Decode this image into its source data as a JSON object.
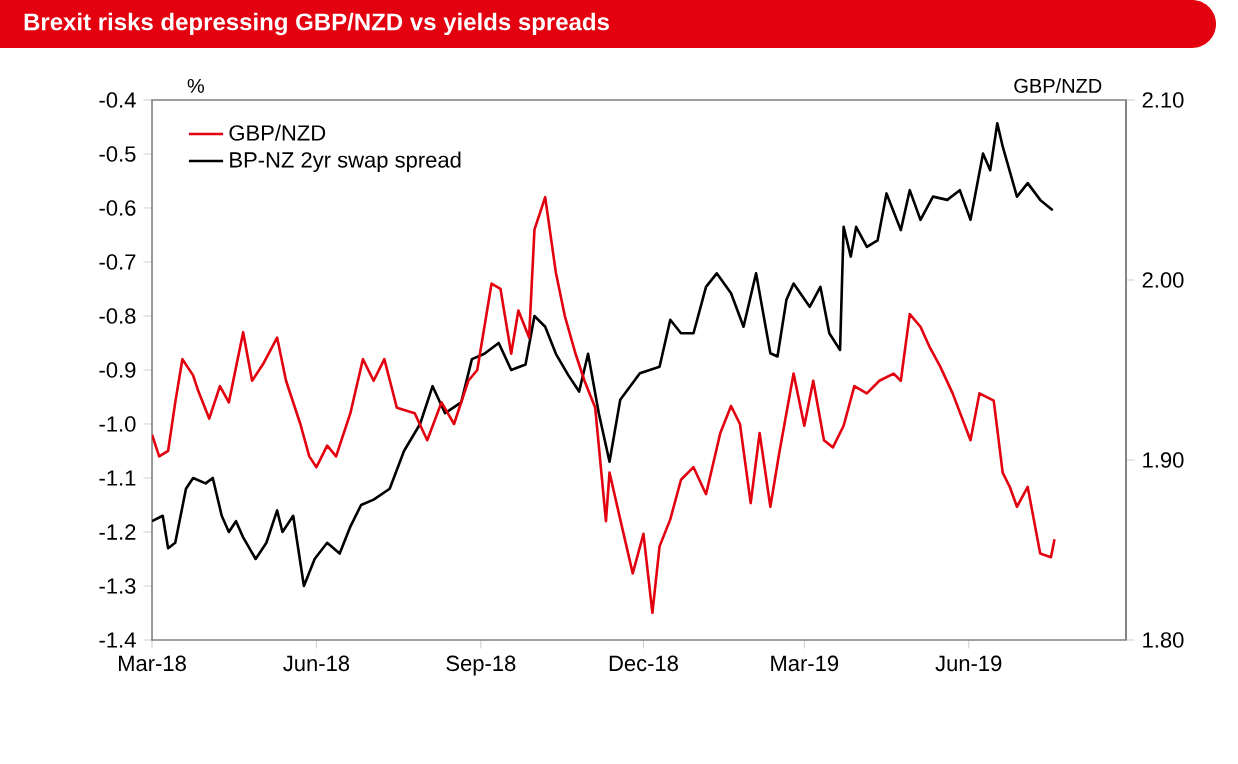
{
  "chart_data": {
    "type": "line",
    "title": "Brexit risks depressing GBP/NZD vs yields spreads",
    "ylabel": "%",
    "y2label": "GBP/NZD",
    "legend": "top left",
    "marker": "none",
    "line_style": "solid",
    "xlim": [
      "2018-03-01",
      "2019-08-28"
    ],
    "xticks": [
      {
        "value": "2018-03-01",
        "label": "Mar-18"
      },
      {
        "value": "2018-06-01",
        "label": "Jun-18"
      },
      {
        "value": "2018-09-01",
        "label": "Sep-18"
      },
      {
        "value": "2018-12-01",
        "label": "Dec-18"
      },
      {
        "value": "2019-03-01",
        "label": "Mar-19"
      },
      {
        "value": "2019-06-01",
        "label": "Jun-19"
      }
    ],
    "ylim": [
      -1.4,
      -0.4
    ],
    "yticks": [
      {
        "value": -1.4,
        "label": "-1.4"
      },
      {
        "value": -1.3,
        "label": "-1.3"
      },
      {
        "value": -1.2,
        "label": "-1.2"
      },
      {
        "value": -1.1,
        "label": "-1.1"
      },
      {
        "value": -1.0,
        "label": "-1.0"
      },
      {
        "value": -0.9,
        "label": "-0.9"
      },
      {
        "value": -0.8,
        "label": "-0.8"
      },
      {
        "value": -0.7,
        "label": "-0.7"
      },
      {
        "value": -0.6,
        "label": "-0.6"
      },
      {
        "value": -0.5,
        "label": "-0.5"
      },
      {
        "value": -0.4,
        "label": "-0.4"
      }
    ],
    "y2lim": [
      1.8,
      2.1
    ],
    "y2ticks": [
      {
        "value": 1.8,
        "label": "1.80"
      },
      {
        "value": 1.9,
        "label": "1.90"
      },
      {
        "value": 2.0,
        "label": "2.00"
      },
      {
        "value": 2.1,
        "label": "2.10"
      }
    ],
    "series": [
      {
        "name": "GBP/NZD",
        "color": "#e3000f",
        "axis": "y2",
        "x": [
          "2018-03-01",
          "2018-03-05",
          "2018-03-10",
          "2018-03-14",
          "2018-03-18",
          "2018-03-24",
          "2018-03-27",
          "2018-04-02",
          "2018-04-08",
          "2018-04-13",
          "2018-04-21",
          "2018-04-26",
          "2018-05-02",
          "2018-05-10",
          "2018-05-15",
          "2018-05-23",
          "2018-05-28",
          "2018-06-01",
          "2018-06-07",
          "2018-06-12",
          "2018-06-20",
          "2018-06-27",
          "2018-07-03",
          "2018-07-09",
          "2018-07-16",
          "2018-07-26",
          "2018-08-02",
          "2018-08-10",
          "2018-08-17",
          "2018-08-25",
          "2018-08-30",
          "2018-09-07",
          "2018-09-12",
          "2018-09-18",
          "2018-09-22",
          "2018-09-28",
          "2018-10-01",
          "2018-10-07",
          "2018-10-13",
          "2018-10-18",
          "2018-10-24",
          "2018-10-29",
          "2018-11-04",
          "2018-11-10",
          "2018-11-12",
          "2018-11-18",
          "2018-11-25",
          "2018-12-01",
          "2018-12-06",
          "2018-12-10",
          "2018-12-16",
          "2018-12-22",
          "2018-12-29",
          "2019-01-05",
          "2019-01-13",
          "2019-01-19",
          "2019-01-24",
          "2019-01-30",
          "2019-02-04",
          "2019-02-10",
          "2019-02-15",
          "2019-02-23",
          "2019-03-01",
          "2019-03-06",
          "2019-03-12",
          "2019-03-17",
          "2019-03-23",
          "2019-03-29",
          "2019-04-05",
          "2019-04-12",
          "2019-04-20",
          "2019-04-24",
          "2019-04-29",
          "2019-05-05",
          "2019-05-10",
          "2019-05-16",
          "2019-05-23",
          "2019-06-02",
          "2019-06-07",
          "2019-06-15",
          "2019-06-20",
          "2019-06-24",
          "2019-06-28",
          "2019-07-04",
          "2019-07-11",
          "2019-07-17",
          "2019-07-19"
        ],
        "values": [
          1.914,
          1.902,
          1.905,
          1.932,
          1.956,
          1.947,
          1.938,
          1.923,
          1.941,
          1.932,
          1.971,
          1.944,
          1.953,
          1.968,
          1.944,
          1.92,
          1.902,
          1.896,
          1.908,
          1.902,
          1.926,
          1.956,
          1.944,
          1.956,
          1.929,
          1.926,
          1.911,
          1.932,
          1.92,
          1.944,
          1.95,
          1.998,
          1.995,
          1.959,
          1.983,
          1.968,
          2.028,
          2.046,
          2.004,
          1.98,
          1.959,
          1.944,
          1.929,
          1.866,
          1.893,
          1.867,
          1.837,
          1.859,
          1.815,
          1.852,
          1.867,
          1.889,
          1.896,
          1.881,
          1.915,
          1.93,
          1.92,
          1.876,
          1.915,
          1.874,
          1.904,
          1.948,
          1.919,
          1.944,
          1.911,
          1.907,
          1.919,
          1.941,
          1.937,
          1.944,
          1.948,
          1.944,
          1.981,
          1.974,
          1.963,
          1.952,
          1.937,
          1.911,
          1.937,
          1.933,
          1.893,
          1.885,
          1.874,
          1.885,
          1.848,
          1.846,
          1.856
        ]
      },
      {
        "name": "BP-NZ 2yr swap spread",
        "color": "#000000",
        "axis": "y",
        "x": [
          "2018-03-01",
          "2018-03-07",
          "2018-03-10",
          "2018-03-14",
          "2018-03-20",
          "2018-03-24",
          "2018-03-31",
          "2018-04-04",
          "2018-04-09",
          "2018-04-13",
          "2018-04-17",
          "2018-04-21",
          "2018-04-28",
          "2018-05-04",
          "2018-05-10",
          "2018-05-13",
          "2018-05-19",
          "2018-05-25",
          "2018-05-31",
          "2018-06-07",
          "2018-06-14",
          "2018-06-20",
          "2018-06-26",
          "2018-07-03",
          "2018-07-12",
          "2018-07-20",
          "2018-07-29",
          "2018-08-05",
          "2018-08-12",
          "2018-08-21",
          "2018-08-27",
          "2018-09-03",
          "2018-09-11",
          "2018-09-18",
          "2018-09-26",
          "2018-10-01",
          "2018-10-07",
          "2018-10-13",
          "2018-10-20",
          "2018-10-26",
          "2018-10-31",
          "2018-11-06",
          "2018-11-12",
          "2018-11-18",
          "2018-11-29",
          "2018-12-10",
          "2018-12-16",
          "2018-12-22",
          "2018-12-29",
          "2019-01-05",
          "2019-01-11",
          "2019-01-19",
          "2019-01-26",
          "2019-02-02",
          "2019-02-10",
          "2019-02-14",
          "2019-02-19",
          "2019-02-23",
          "2019-03-04",
          "2019-03-10",
          "2019-03-15",
          "2019-03-21",
          "2019-03-23",
          "2019-03-27",
          "2019-03-30",
          "2019-04-05",
          "2019-04-11",
          "2019-04-16",
          "2019-04-24",
          "2019-04-29",
          "2019-05-05",
          "2019-05-12",
          "2019-05-20",
          "2019-05-27",
          "2019-06-02",
          "2019-06-09",
          "2019-06-13",
          "2019-06-17",
          "2019-06-20",
          "2019-06-28",
          "2019-07-04",
          "2019-07-11",
          "2019-07-18"
        ],
        "values": [
          -1.18,
          -1.17,
          -1.23,
          -1.22,
          -1.12,
          -1.1,
          -1.11,
          -1.1,
          -1.17,
          -1.2,
          -1.18,
          -1.21,
          -1.25,
          -1.22,
          -1.16,
          -1.2,
          -1.17,
          -1.3,
          -1.25,
          -1.22,
          -1.24,
          -1.19,
          -1.15,
          -1.14,
          -1.12,
          -1.05,
          -1.0,
          -0.93,
          -0.98,
          -0.96,
          -0.88,
          -0.87,
          -0.85,
          -0.9,
          -0.89,
          -0.8,
          -0.82,
          -0.87,
          -0.91,
          -0.94,
          -0.87,
          -0.98,
          -1.07,
          -0.955,
          -0.906,
          -0.894,
          -0.807,
          -0.832,
          -0.832,
          -0.746,
          -0.721,
          -0.758,
          -0.82,
          -0.721,
          -0.869,
          -0.875,
          -0.77,
          -0.74,
          -0.783,
          -0.746,
          -0.832,
          -0.863,
          -0.635,
          -0.69,
          -0.635,
          -0.672,
          -0.66,
          -0.573,
          -0.641,
          -0.567,
          -0.622,
          -0.579,
          -0.585,
          -0.567,
          -0.622,
          -0.499,
          -0.53,
          -0.443,
          -0.486,
          -0.579,
          -0.554,
          -0.585,
          -0.604
        ]
      }
    ]
  }
}
